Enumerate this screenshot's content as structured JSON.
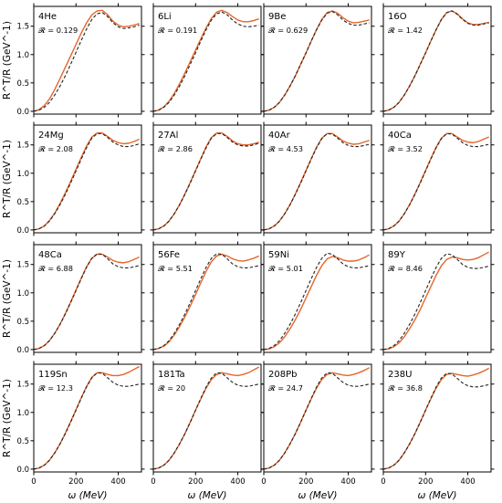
{
  "colors": {
    "solid": "#e4662a",
    "dashed": "#222222"
  },
  "x_axis_label": "ω (MeV)",
  "y_axis_label": "R^T/R (GeV^-1)",
  "x_tick_labels": [
    "0",
    "200",
    "400"
  ],
  "y_tick_labels": [
    "0.0",
    "0.5",
    "1.0",
    "1.5"
  ],
  "panels": [
    {
      "nucleus": "4He",
      "r_value": "𝓡 = 0.129"
    },
    {
      "nucleus": "6Li",
      "r_value": "𝓡 = 0.191"
    },
    {
      "nucleus": "9Be",
      "r_value": "𝓡 = 0.629"
    },
    {
      "nucleus": "16O",
      "r_value": "𝓡 = 1.42"
    },
    {
      "nucleus": "24Mg",
      "r_value": "𝓡 = 2.08"
    },
    {
      "nucleus": "27Al",
      "r_value": "𝓡 = 2.86"
    },
    {
      "nucleus": "40Ar",
      "r_value": "𝓡 = 4.53"
    },
    {
      "nucleus": "40Ca",
      "r_value": "𝓡 = 3.52"
    },
    {
      "nucleus": "48Ca",
      "r_value": "𝓡 = 6.88"
    },
    {
      "nucleus": "56Fe",
      "r_value": "𝓡 = 5.51"
    },
    {
      "nucleus": "59Ni",
      "r_value": "𝓡 = 5.01"
    },
    {
      "nucleus": "89Y",
      "r_value": "𝓡 = 8.46"
    },
    {
      "nucleus": "119Sn",
      "r_value": "𝓡 = 12.3"
    },
    {
      "nucleus": "181Ta",
      "r_value": "𝓡 = 20"
    },
    {
      "nucleus": "208Pb",
      "r_value": "𝓡 = 24.7"
    },
    {
      "nucleus": "238U",
      "r_value": "𝓡 = 36.8"
    }
  ],
  "chart_data": {
    "type": "line",
    "layout": "4x4 small multiples",
    "xlabel": "ω (MeV)",
    "ylabel": "R^T/R (GeV^-1)",
    "xlim": [
      0,
      510
    ],
    "ylim": [
      -0.05,
      1.85
    ],
    "x": [
      0,
      25,
      50,
      75,
      100,
      125,
      150,
      175,
      200,
      225,
      250,
      275,
      300,
      325,
      350,
      375,
      400,
      425,
      450,
      475,
      500
    ],
    "panels": [
      {
        "nucleus": "4He",
        "r": 0.129,
        "series": [
          {
            "style": "solid",
            "values": [
              0.0,
              0.03,
              0.1,
              0.22,
              0.39,
              0.58,
              0.78,
              0.98,
              1.18,
              1.38,
              1.56,
              1.7,
              1.77,
              1.78,
              1.7,
              1.59,
              1.52,
              1.49,
              1.5,
              1.52,
              1.55
            ]
          },
          {
            "style": "dashed",
            "values": [
              0.0,
              0.02,
              0.07,
              0.16,
              0.29,
              0.45,
              0.63,
              0.83,
              1.04,
              1.25,
              1.45,
              1.62,
              1.72,
              1.74,
              1.67,
              1.56,
              1.49,
              1.46,
              1.47,
              1.49,
              1.52
            ]
          }
        ]
      },
      {
        "nucleus": "6Li",
        "r": 0.191,
        "series": [
          {
            "style": "solid",
            "values": [
              0.0,
              0.02,
              0.08,
              0.18,
              0.32,
              0.49,
              0.68,
              0.88,
              1.08,
              1.28,
              1.47,
              1.64,
              1.75,
              1.78,
              1.74,
              1.67,
              1.61,
              1.58,
              1.58,
              1.6,
              1.63
            ]
          },
          {
            "style": "dashed",
            "values": [
              0.0,
              0.02,
              0.07,
              0.16,
              0.29,
              0.45,
              0.63,
              0.83,
              1.03,
              1.24,
              1.44,
              1.61,
              1.72,
              1.75,
              1.7,
              1.61,
              1.54,
              1.5,
              1.49,
              1.5,
              1.52
            ]
          }
        ]
      },
      {
        "nucleus": "9Be",
        "r": 0.629,
        "series": [
          {
            "style": "solid",
            "values": [
              0.0,
              0.02,
              0.07,
              0.16,
              0.29,
              0.45,
              0.63,
              0.83,
              1.03,
              1.24,
              1.44,
              1.62,
              1.74,
              1.77,
              1.73,
              1.65,
              1.59,
              1.56,
              1.57,
              1.59,
              1.61
            ]
          },
          {
            "style": "dashed",
            "values": [
              0.0,
              0.02,
              0.07,
              0.16,
              0.29,
              0.45,
              0.63,
              0.83,
              1.03,
              1.24,
              1.44,
              1.61,
              1.73,
              1.76,
              1.7,
              1.61,
              1.55,
              1.52,
              1.52,
              1.54,
              1.56
            ]
          }
        ]
      },
      {
        "nucleus": "16O",
        "r": 1.42,
        "series": [
          {
            "style": "solid",
            "values": [
              0.0,
              0.02,
              0.07,
              0.16,
              0.29,
              0.45,
              0.63,
              0.83,
              1.03,
              1.24,
              1.44,
              1.62,
              1.74,
              1.77,
              1.72,
              1.63,
              1.56,
              1.53,
              1.53,
              1.55,
              1.57
            ]
          },
          {
            "style": "dashed",
            "values": [
              0.0,
              0.02,
              0.07,
              0.16,
              0.29,
              0.45,
              0.63,
              0.83,
              1.03,
              1.24,
              1.44,
              1.62,
              1.74,
              1.77,
              1.71,
              1.62,
              1.55,
              1.52,
              1.52,
              1.54,
              1.56
            ]
          }
        ]
      },
      {
        "nucleus": "24Mg",
        "r": 2.08,
        "series": [
          {
            "style": "solid",
            "values": [
              0.0,
              0.02,
              0.07,
              0.17,
              0.3,
              0.47,
              0.66,
              0.86,
              1.07,
              1.28,
              1.48,
              1.64,
              1.71,
              1.71,
              1.65,
              1.58,
              1.54,
              1.52,
              1.53,
              1.56,
              1.6
            ]
          },
          {
            "style": "dashed",
            "values": [
              0.0,
              0.02,
              0.07,
              0.16,
              0.29,
              0.45,
              0.63,
              0.83,
              1.04,
              1.25,
              1.45,
              1.62,
              1.7,
              1.7,
              1.63,
              1.55,
              1.5,
              1.47,
              1.47,
              1.49,
              1.52
            ]
          }
        ]
      },
      {
        "nucleus": "27Al",
        "r": 2.86,
        "series": [
          {
            "style": "solid",
            "values": [
              0.0,
              0.02,
              0.07,
              0.16,
              0.29,
              0.45,
              0.64,
              0.84,
              1.05,
              1.26,
              1.47,
              1.63,
              1.71,
              1.71,
              1.65,
              1.57,
              1.52,
              1.5,
              1.5,
              1.52,
              1.55
            ]
          },
          {
            "style": "dashed",
            "values": [
              0.0,
              0.02,
              0.07,
              0.16,
              0.29,
              0.45,
              0.63,
              0.83,
              1.04,
              1.25,
              1.45,
              1.62,
              1.7,
              1.7,
              1.63,
              1.55,
              1.5,
              1.48,
              1.48,
              1.5,
              1.53
            ]
          }
        ]
      },
      {
        "nucleus": "40Ar",
        "r": 4.53,
        "series": [
          {
            "style": "solid",
            "values": [
              0.0,
              0.02,
              0.07,
              0.16,
              0.29,
              0.45,
              0.64,
              0.84,
              1.05,
              1.26,
              1.46,
              1.62,
              1.7,
              1.7,
              1.64,
              1.57,
              1.53,
              1.51,
              1.52,
              1.55,
              1.58
            ]
          },
          {
            "style": "dashed",
            "values": [
              0.0,
              0.02,
              0.07,
              0.16,
              0.29,
              0.45,
              0.63,
              0.83,
              1.04,
              1.25,
              1.45,
              1.61,
              1.7,
              1.69,
              1.62,
              1.54,
              1.49,
              1.47,
              1.47,
              1.49,
              1.51
            ]
          }
        ]
      },
      {
        "nucleus": "40Ca",
        "r": 3.52,
        "series": [
          {
            "style": "solid",
            "values": [
              0.0,
              0.02,
              0.07,
              0.16,
              0.29,
              0.45,
              0.64,
              0.84,
              1.05,
              1.26,
              1.46,
              1.62,
              1.7,
              1.7,
              1.64,
              1.58,
              1.55,
              1.54,
              1.56,
              1.6,
              1.64
            ]
          },
          {
            "style": "dashed",
            "values": [
              0.0,
              0.02,
              0.07,
              0.16,
              0.29,
              0.45,
              0.63,
              0.83,
              1.04,
              1.25,
              1.45,
              1.61,
              1.7,
              1.69,
              1.62,
              1.54,
              1.49,
              1.47,
              1.47,
              1.49,
              1.51
            ]
          }
        ]
      },
      {
        "nucleus": "48Ca",
        "r": 6.88,
        "series": [
          {
            "style": "solid",
            "values": [
              0.0,
              0.02,
              0.07,
              0.16,
              0.29,
              0.45,
              0.64,
              0.84,
              1.05,
              1.26,
              1.46,
              1.61,
              1.68,
              1.68,
              1.63,
              1.57,
              1.54,
              1.53,
              1.55,
              1.59,
              1.63
            ]
          },
          {
            "style": "dashed",
            "values": [
              0.0,
              0.02,
              0.07,
              0.16,
              0.29,
              0.45,
              0.63,
              0.83,
              1.04,
              1.25,
              1.45,
              1.61,
              1.69,
              1.68,
              1.6,
              1.51,
              1.46,
              1.44,
              1.44,
              1.46,
              1.48
            ]
          }
        ]
      },
      {
        "nucleus": "56Fe",
        "r": 5.51,
        "series": [
          {
            "style": "solid",
            "values": [
              0.0,
              0.02,
              0.06,
              0.14,
              0.26,
              0.41,
              0.58,
              0.77,
              0.97,
              1.18,
              1.38,
              1.55,
              1.65,
              1.68,
              1.65,
              1.6,
              1.57,
              1.56,
              1.58,
              1.61,
              1.65
            ]
          },
          {
            "style": "dashed",
            "values": [
              0.0,
              0.02,
              0.07,
              0.16,
              0.29,
              0.45,
              0.63,
              0.83,
              1.04,
              1.25,
              1.45,
              1.61,
              1.69,
              1.68,
              1.6,
              1.51,
              1.46,
              1.44,
              1.44,
              1.46,
              1.48
            ]
          }
        ]
      },
      {
        "nucleus": "59Ni",
        "r": 5.01,
        "series": [
          {
            "style": "solid",
            "values": [
              0.0,
              0.01,
              0.05,
              0.12,
              0.23,
              0.37,
              0.53,
              0.71,
              0.91,
              1.11,
              1.31,
              1.48,
              1.6,
              1.64,
              1.62,
              1.58,
              1.56,
              1.56,
              1.58,
              1.62,
              1.67
            ]
          },
          {
            "style": "dashed",
            "values": [
              0.0,
              0.02,
              0.07,
              0.16,
              0.29,
              0.45,
              0.63,
              0.83,
              1.04,
              1.25,
              1.45,
              1.61,
              1.7,
              1.68,
              1.6,
              1.51,
              1.46,
              1.44,
              1.44,
              1.46,
              1.48
            ]
          }
        ]
      },
      {
        "nucleus": "89Y",
        "r": 8.46,
        "series": [
          {
            "style": "solid",
            "values": [
              0.0,
              0.01,
              0.05,
              0.12,
              0.23,
              0.37,
              0.53,
              0.71,
              0.91,
              1.11,
              1.31,
              1.48,
              1.59,
              1.63,
              1.62,
              1.59,
              1.58,
              1.59,
              1.62,
              1.67,
              1.72
            ]
          },
          {
            "style": "dashed",
            "values": [
              0.0,
              0.02,
              0.07,
              0.16,
              0.29,
              0.45,
              0.63,
              0.83,
              1.04,
              1.25,
              1.45,
              1.61,
              1.69,
              1.67,
              1.59,
              1.5,
              1.45,
              1.43,
              1.43,
              1.45,
              1.47
            ]
          }
        ]
      },
      {
        "nucleus": "119Sn",
        "r": 12.3,
        "series": [
          {
            "style": "solid",
            "values": [
              0.0,
              0.02,
              0.07,
              0.16,
              0.29,
              0.45,
              0.64,
              0.84,
              1.05,
              1.26,
              1.46,
              1.62,
              1.7,
              1.7,
              1.67,
              1.65,
              1.65,
              1.67,
              1.71,
              1.76,
              1.81
            ]
          },
          {
            "style": "dashed",
            "values": [
              0.0,
              0.02,
              0.07,
              0.16,
              0.29,
              0.45,
              0.63,
              0.83,
              1.04,
              1.25,
              1.45,
              1.61,
              1.7,
              1.69,
              1.61,
              1.53,
              1.48,
              1.46,
              1.46,
              1.48,
              1.5
            ]
          }
        ]
      },
      {
        "nucleus": "181Ta",
        "r": 20,
        "series": [
          {
            "style": "solid",
            "values": [
              0.0,
              0.02,
              0.07,
              0.16,
              0.29,
              0.45,
              0.63,
              0.83,
              1.04,
              1.24,
              1.43,
              1.58,
              1.67,
              1.7,
              1.68,
              1.66,
              1.65,
              1.67,
              1.7,
              1.75,
              1.8
            ]
          },
          {
            "style": "dashed",
            "values": [
              0.0,
              0.02,
              0.07,
              0.16,
              0.29,
              0.45,
              0.63,
              0.83,
              1.04,
              1.25,
              1.45,
              1.61,
              1.7,
              1.69,
              1.61,
              1.53,
              1.48,
              1.46,
              1.46,
              1.48,
              1.5
            ]
          }
        ]
      },
      {
        "nucleus": "208Pb",
        "r": 24.7,
        "series": [
          {
            "style": "solid",
            "values": [
              0.0,
              0.02,
              0.07,
              0.16,
              0.29,
              0.45,
              0.63,
              0.83,
              1.04,
              1.24,
              1.43,
              1.58,
              1.67,
              1.7,
              1.68,
              1.66,
              1.65,
              1.67,
              1.7,
              1.74,
              1.79
            ]
          },
          {
            "style": "dashed",
            "values": [
              0.0,
              0.02,
              0.07,
              0.16,
              0.29,
              0.45,
              0.63,
              0.83,
              1.04,
              1.25,
              1.45,
              1.61,
              1.7,
              1.69,
              1.61,
              1.53,
              1.48,
              1.46,
              1.46,
              1.48,
              1.5
            ]
          }
        ]
      },
      {
        "nucleus": "238U",
        "r": 36.8,
        "series": [
          {
            "style": "solid",
            "values": [
              0.0,
              0.02,
              0.07,
              0.16,
              0.29,
              0.45,
              0.63,
              0.83,
              1.04,
              1.24,
              1.43,
              1.58,
              1.67,
              1.69,
              1.67,
              1.65,
              1.64,
              1.66,
              1.69,
              1.73,
              1.78
            ]
          },
          {
            "style": "dashed",
            "values": [
              0.0,
              0.02,
              0.07,
              0.16,
              0.29,
              0.45,
              0.63,
              0.83,
              1.04,
              1.25,
              1.45,
              1.61,
              1.69,
              1.68,
              1.6,
              1.52,
              1.47,
              1.45,
              1.45,
              1.47,
              1.49
            ]
          }
        ]
      }
    ]
  }
}
